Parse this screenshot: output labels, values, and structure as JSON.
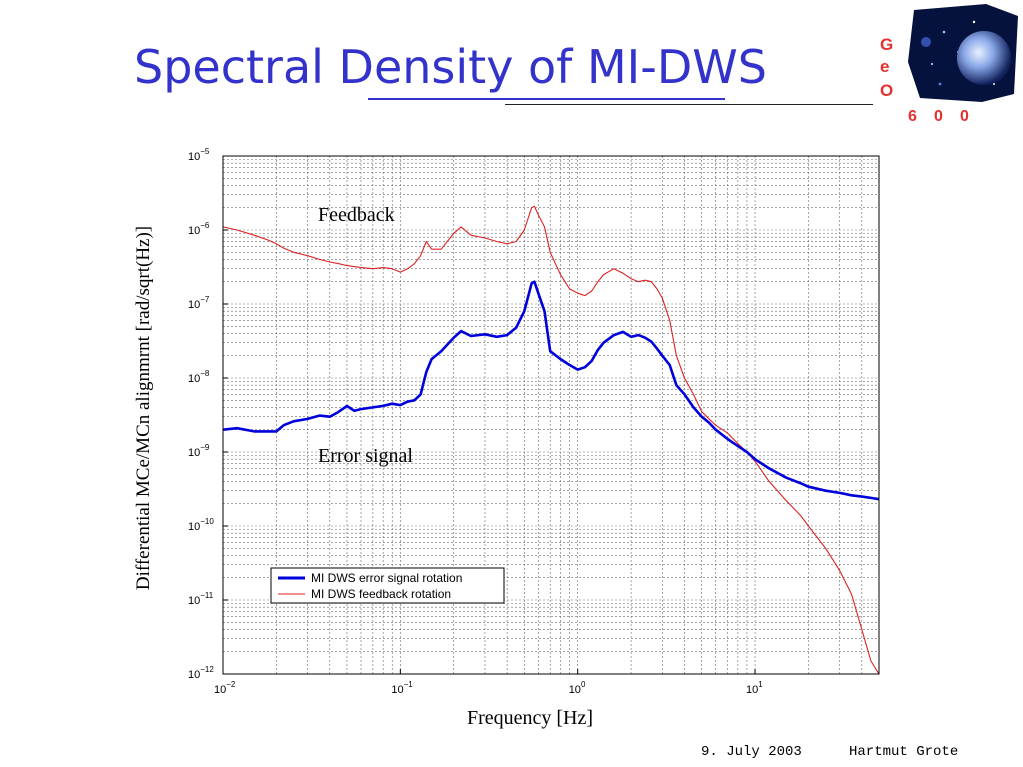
{
  "slide": {
    "title": "Spectral Density of MI-DWS",
    "date": "9. July 2003",
    "author": "Hartmut Grote"
  },
  "logo": {
    "letters": [
      "G",
      "e",
      "O"
    ],
    "number": [
      "6",
      "0",
      "0"
    ],
    "letter_color": "#e53030"
  },
  "chart_data": {
    "type": "line",
    "xlabel": "Frequency [Hz]",
    "ylabel": "Differential MCe/MCn alignmrnt [rad/sqrt(Hz)]",
    "x_scale": "log",
    "y_scale": "log",
    "xlim": [
      0.01,
      50
    ],
    "ylim": [
      1e-12,
      1e-05
    ],
    "grid": true,
    "legend_placement": "lower-left",
    "x_ticks": [
      {
        "base": "10",
        "exp": "−2"
      },
      {
        "base": "10",
        "exp": "−1"
      },
      {
        "base": "10",
        "exp": "0"
      },
      {
        "base": "10",
        "exp": "1"
      }
    ],
    "y_ticks": [
      {
        "base": "10",
        "exp": "−5"
      },
      {
        "base": "10",
        "exp": "−6"
      },
      {
        "base": "10",
        "exp": "−7"
      },
      {
        "base": "10",
        "exp": "−8"
      },
      {
        "base": "10",
        "exp": "−9"
      },
      {
        "base": "10",
        "exp": "−10"
      },
      {
        "base": "10",
        "exp": "−11"
      },
      {
        "base": "10",
        "exp": "−12"
      }
    ],
    "annotations": [
      "Feedback",
      "Error signal"
    ],
    "series": [
      {
        "name": "MI DWS error signal rotation",
        "color": "#0000dd",
        "x": [
          0.01,
          0.012,
          0.015,
          0.018,
          0.02,
          0.022,
          0.025,
          0.03,
          0.035,
          0.04,
          0.045,
          0.05,
          0.055,
          0.06,
          0.07,
          0.08,
          0.09,
          0.1,
          0.11,
          0.12,
          0.13,
          0.14,
          0.15,
          0.17,
          0.2,
          0.22,
          0.25,
          0.3,
          0.35,
          0.4,
          0.45,
          0.5,
          0.55,
          0.57,
          0.6,
          0.65,
          0.7,
          0.8,
          0.9,
          1.0,
          1.1,
          1.2,
          1.3,
          1.4,
          1.6,
          1.8,
          2.0,
          2.2,
          2.4,
          2.6,
          2.8,
          3.0,
          3.3,
          3.6,
          4.0,
          4.5,
          5.0,
          5.5,
          6.0,
          7.0,
          8.0,
          9.0,
          10.0,
          12.0,
          15.0,
          18.0,
          20.0,
          25.0,
          30.0,
          35.0,
          40.0,
          45.0,
          50.0
        ],
        "y": [
          2e-09,
          2.1e-09,
          1.9e-09,
          1.9e-09,
          1.9e-09,
          2.3e-09,
          2.6e-09,
          2.8e-09,
          3.1e-09,
          3e-09,
          3.5e-09,
          4.2e-09,
          3.6e-09,
          3.8e-09,
          4e-09,
          4.2e-09,
          4.5e-09,
          4.3e-09,
          4.8e-09,
          5e-09,
          6e-09,
          1.2e-08,
          1.8e-08,
          2.3e-08,
          3.5e-08,
          4.3e-08,
          3.7e-08,
          3.9e-08,
          3.6e-08,
          3.8e-08,
          4.8e-08,
          8e-08,
          1.9e-07,
          2e-07,
          1.4e-07,
          8e-08,
          2.3e-08,
          1.8e-08,
          1.5e-08,
          1.3e-08,
          1.4e-08,
          1.7e-08,
          2.4e-08,
          3e-08,
          3.8e-08,
          4.2e-08,
          3.6e-08,
          3.8e-08,
          3.5e-08,
          3.1e-08,
          2.5e-08,
          2e-08,
          1.5e-08,
          8e-09,
          6e-09,
          4e-09,
          3e-09,
          2.5e-09,
          2e-09,
          1.5e-09,
          1.2e-09,
          1e-09,
          8e-10,
          6e-10,
          4.5e-10,
          3.8e-10,
          3.4e-10,
          3e-10,
          2.8e-10,
          2.6e-10,
          2.5e-10,
          2.4e-10,
          2.3e-10
        ]
      },
      {
        "name": "MI DWS feedback rotation",
        "color": "#dd2222",
        "x": [
          0.01,
          0.012,
          0.015,
          0.018,
          0.02,
          0.022,
          0.025,
          0.03,
          0.035,
          0.04,
          0.045,
          0.05,
          0.055,
          0.06,
          0.07,
          0.08,
          0.09,
          0.1,
          0.11,
          0.12,
          0.13,
          0.14,
          0.15,
          0.17,
          0.2,
          0.22,
          0.25,
          0.3,
          0.35,
          0.4,
          0.45,
          0.5,
          0.55,
          0.57,
          0.6,
          0.65,
          0.7,
          0.8,
          0.9,
          1.0,
          1.1,
          1.2,
          1.3,
          1.4,
          1.6,
          1.8,
          2.0,
          2.2,
          2.4,
          2.6,
          2.8,
          3.0,
          3.3,
          3.6,
          4.0,
          4.5,
          5.0,
          5.5,
          6.0,
          7.0,
          8.0,
          9.0,
          10.0,
          12.0,
          15.0,
          18.0,
          20.0,
          25.0,
          30.0,
          35.0,
          40.0,
          45.0,
          50.0
        ],
        "y": [
          1.1e-06,
          1e-06,
          8.5e-07,
          7.3e-07,
          6.5e-07,
          5.7e-07,
          5e-07,
          4.5e-07,
          4e-07,
          3.7e-07,
          3.5e-07,
          3.3e-07,
          3.2e-07,
          3.1e-07,
          3e-07,
          3.1e-07,
          3e-07,
          2.7e-07,
          3e-07,
          3.5e-07,
          4.5e-07,
          7e-07,
          5.5e-07,
          5.5e-07,
          9e-07,
          1.1e-06,
          8.5e-07,
          7.8e-07,
          7e-07,
          6.5e-07,
          7e-07,
          1e-06,
          2e-06,
          2.1e-06,
          1.6e-06,
          1.1e-06,
          5e-07,
          2.5e-07,
          1.6e-07,
          1.4e-07,
          1.3e-07,
          1.5e-07,
          2e-07,
          2.5e-07,
          3e-07,
          2.6e-07,
          2.2e-07,
          2e-07,
          2.1e-07,
          2e-07,
          1.6e-07,
          1.2e-07,
          6e-08,
          2e-08,
          1e-08,
          6e-09,
          3.5e-09,
          2.8e-09,
          2.3e-09,
          1.8e-09,
          1.3e-09,
          1e-09,
          7.5e-10,
          4e-10,
          2.2e-10,
          1.4e-10,
          1e-10,
          5e-11,
          2.5e-11,
          1.2e-11,
          4e-12,
          1.5e-12,
          1e-12
        ]
      }
    ]
  }
}
